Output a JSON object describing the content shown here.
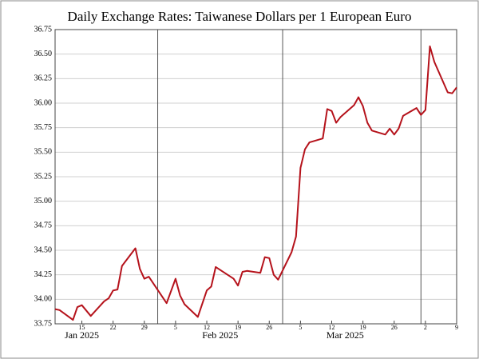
{
  "chart_data": {
    "type": "line",
    "title": "Daily Exchange Rates: Taiwanese Dollars per 1 European Euro",
    "x": [
      "2025-01-09",
      "2025-01-10",
      "2025-01-13",
      "2025-01-14",
      "2025-01-15",
      "2025-01-17",
      "2025-01-20",
      "2025-01-21",
      "2025-01-22",
      "2025-01-23",
      "2025-01-24",
      "2025-01-27",
      "2025-01-28",
      "2025-01-29",
      "2025-01-30",
      "2025-02-03",
      "2025-02-05",
      "2025-02-06",
      "2025-02-07",
      "2025-02-10",
      "2025-02-12",
      "2025-02-13",
      "2025-02-14",
      "2025-02-18",
      "2025-02-19",
      "2025-02-20",
      "2025-02-21",
      "2025-02-24",
      "2025-02-25",
      "2025-02-26",
      "2025-02-27",
      "2025-02-28",
      "2025-03-03",
      "2025-03-04",
      "2025-03-05",
      "2025-03-06",
      "2025-03-07",
      "2025-03-10",
      "2025-03-11",
      "2025-03-12",
      "2025-03-13",
      "2025-03-14",
      "2025-03-17",
      "2025-03-18",
      "2025-03-19",
      "2025-03-20",
      "2025-03-21",
      "2025-03-24",
      "2025-03-25",
      "2025-03-26",
      "2025-03-27",
      "2025-03-28",
      "2025-03-31",
      "2025-04-01",
      "2025-04-02",
      "2025-04-03",
      "2025-04-04",
      "2025-04-07",
      "2025-04-08",
      "2025-04-09"
    ],
    "series": [
      {
        "color": "#b5121b",
        "values": [
          33.9,
          33.89,
          33.79,
          33.92,
          33.94,
          33.83,
          33.98,
          34.01,
          34.09,
          34.1,
          34.34,
          34.52,
          34.31,
          34.21,
          34.23,
          33.96,
          34.21,
          34.04,
          33.95,
          33.82,
          34.09,
          34.13,
          34.33,
          34.21,
          34.14,
          34.28,
          34.29,
          34.27,
          34.43,
          34.42,
          34.25,
          34.2,
          34.48,
          34.64,
          35.34,
          35.53,
          35.6,
          35.64,
          35.94,
          35.92,
          35.8,
          35.86,
          35.98,
          36.06,
          35.97,
          35.8,
          35.72,
          35.68,
          35.74,
          35.68,
          35.74,
          35.87,
          35.95,
          35.88,
          35.93,
          36.58,
          36.42,
          36.11,
          36.1,
          36.16
        ]
      }
    ],
    "xlim": [
      "2025-01-09",
      "2025-04-09"
    ],
    "xticks": [
      {
        "value": "2025-01-15",
        "label": "15"
      },
      {
        "value": "2025-01-22",
        "label": "22"
      },
      {
        "value": "2025-01-29",
        "label": "29"
      },
      {
        "value": "2025-02-05",
        "label": "5"
      },
      {
        "value": "2025-02-12",
        "label": "12"
      },
      {
        "value": "2025-02-19",
        "label": "19"
      },
      {
        "value": "2025-02-26",
        "label": "26"
      },
      {
        "value": "2025-03-05",
        "label": "5"
      },
      {
        "value": "2025-03-12",
        "label": "12"
      },
      {
        "value": "2025-03-19",
        "label": "19"
      },
      {
        "value": "2025-03-26",
        "label": "26"
      },
      {
        "value": "2025-04-02",
        "label": "2"
      },
      {
        "value": "2025-04-09",
        "label": "9"
      }
    ],
    "months": [
      {
        "value": "2025-01-01",
        "label": "Jan 2025"
      },
      {
        "value": "2025-02-01",
        "label": "Feb 2025"
      },
      {
        "value": "2025-03-01",
        "label": "Mar 2025"
      },
      {
        "value": "2025-04-01",
        "label": ""
      }
    ],
    "ylim": [
      33.75,
      36.75
    ],
    "yticks": [
      33.75,
      {
        "value": 34.0,
        "label": "34.00"
      },
      34.25,
      {
        "value": 34.5,
        "label": "34.50"
      },
      34.75,
      {
        "value": 35.0,
        "label": "35.00"
      },
      35.25,
      {
        "value": 35.5,
        "label": "35.50"
      },
      35.75,
      {
        "value": 36.0,
        "label": "36.00"
      },
      36.25,
      {
        "value": 36.5,
        "label": "36.50"
      },
      36.75
    ],
    "grid": true
  }
}
